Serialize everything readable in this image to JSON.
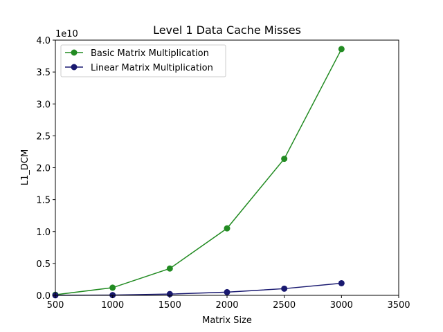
{
  "chart_data": {
    "type": "line",
    "title": "Level 1 Data Cache Misses",
    "xlabel": "Matrix Size",
    "ylabel": "L1_DCM",
    "y_offset_label": "1e10",
    "xlim": [
      500,
      3500
    ],
    "ylim": [
      0,
      40000000000
    ],
    "x_ticks": [
      500,
      1000,
      1500,
      2000,
      2500,
      3000,
      3500
    ],
    "x_tick_labels": [
      "500",
      "1000",
      "1500",
      "2000",
      "2500",
      "3000",
      "3500"
    ],
    "y_ticks": [
      0,
      5000000000,
      10000000000,
      15000000000,
      20000000000,
      25000000000,
      30000000000,
      35000000000,
      40000000000
    ],
    "y_tick_labels": [
      "0.0",
      "0.5",
      "1.0",
      "1.5",
      "2.0",
      "2.5",
      "3.0",
      "3.5",
      "4.0"
    ],
    "grid": false,
    "legend_position": "top-left",
    "x": [
      500,
      1000,
      1500,
      2000,
      2500,
      3000
    ],
    "series": [
      {
        "name": "Basic Matrix Multiplication",
        "color": "#228b22",
        "values": [
          100000000,
          1200000000,
          4200000000,
          10500000000,
          21400000000,
          38600000000
        ]
      },
      {
        "name": "Linear Matrix Multiplication",
        "color": "#191970",
        "values": [
          10000000,
          40000000,
          200000000,
          500000000,
          1050000000,
          1900000000
        ]
      }
    ]
  }
}
